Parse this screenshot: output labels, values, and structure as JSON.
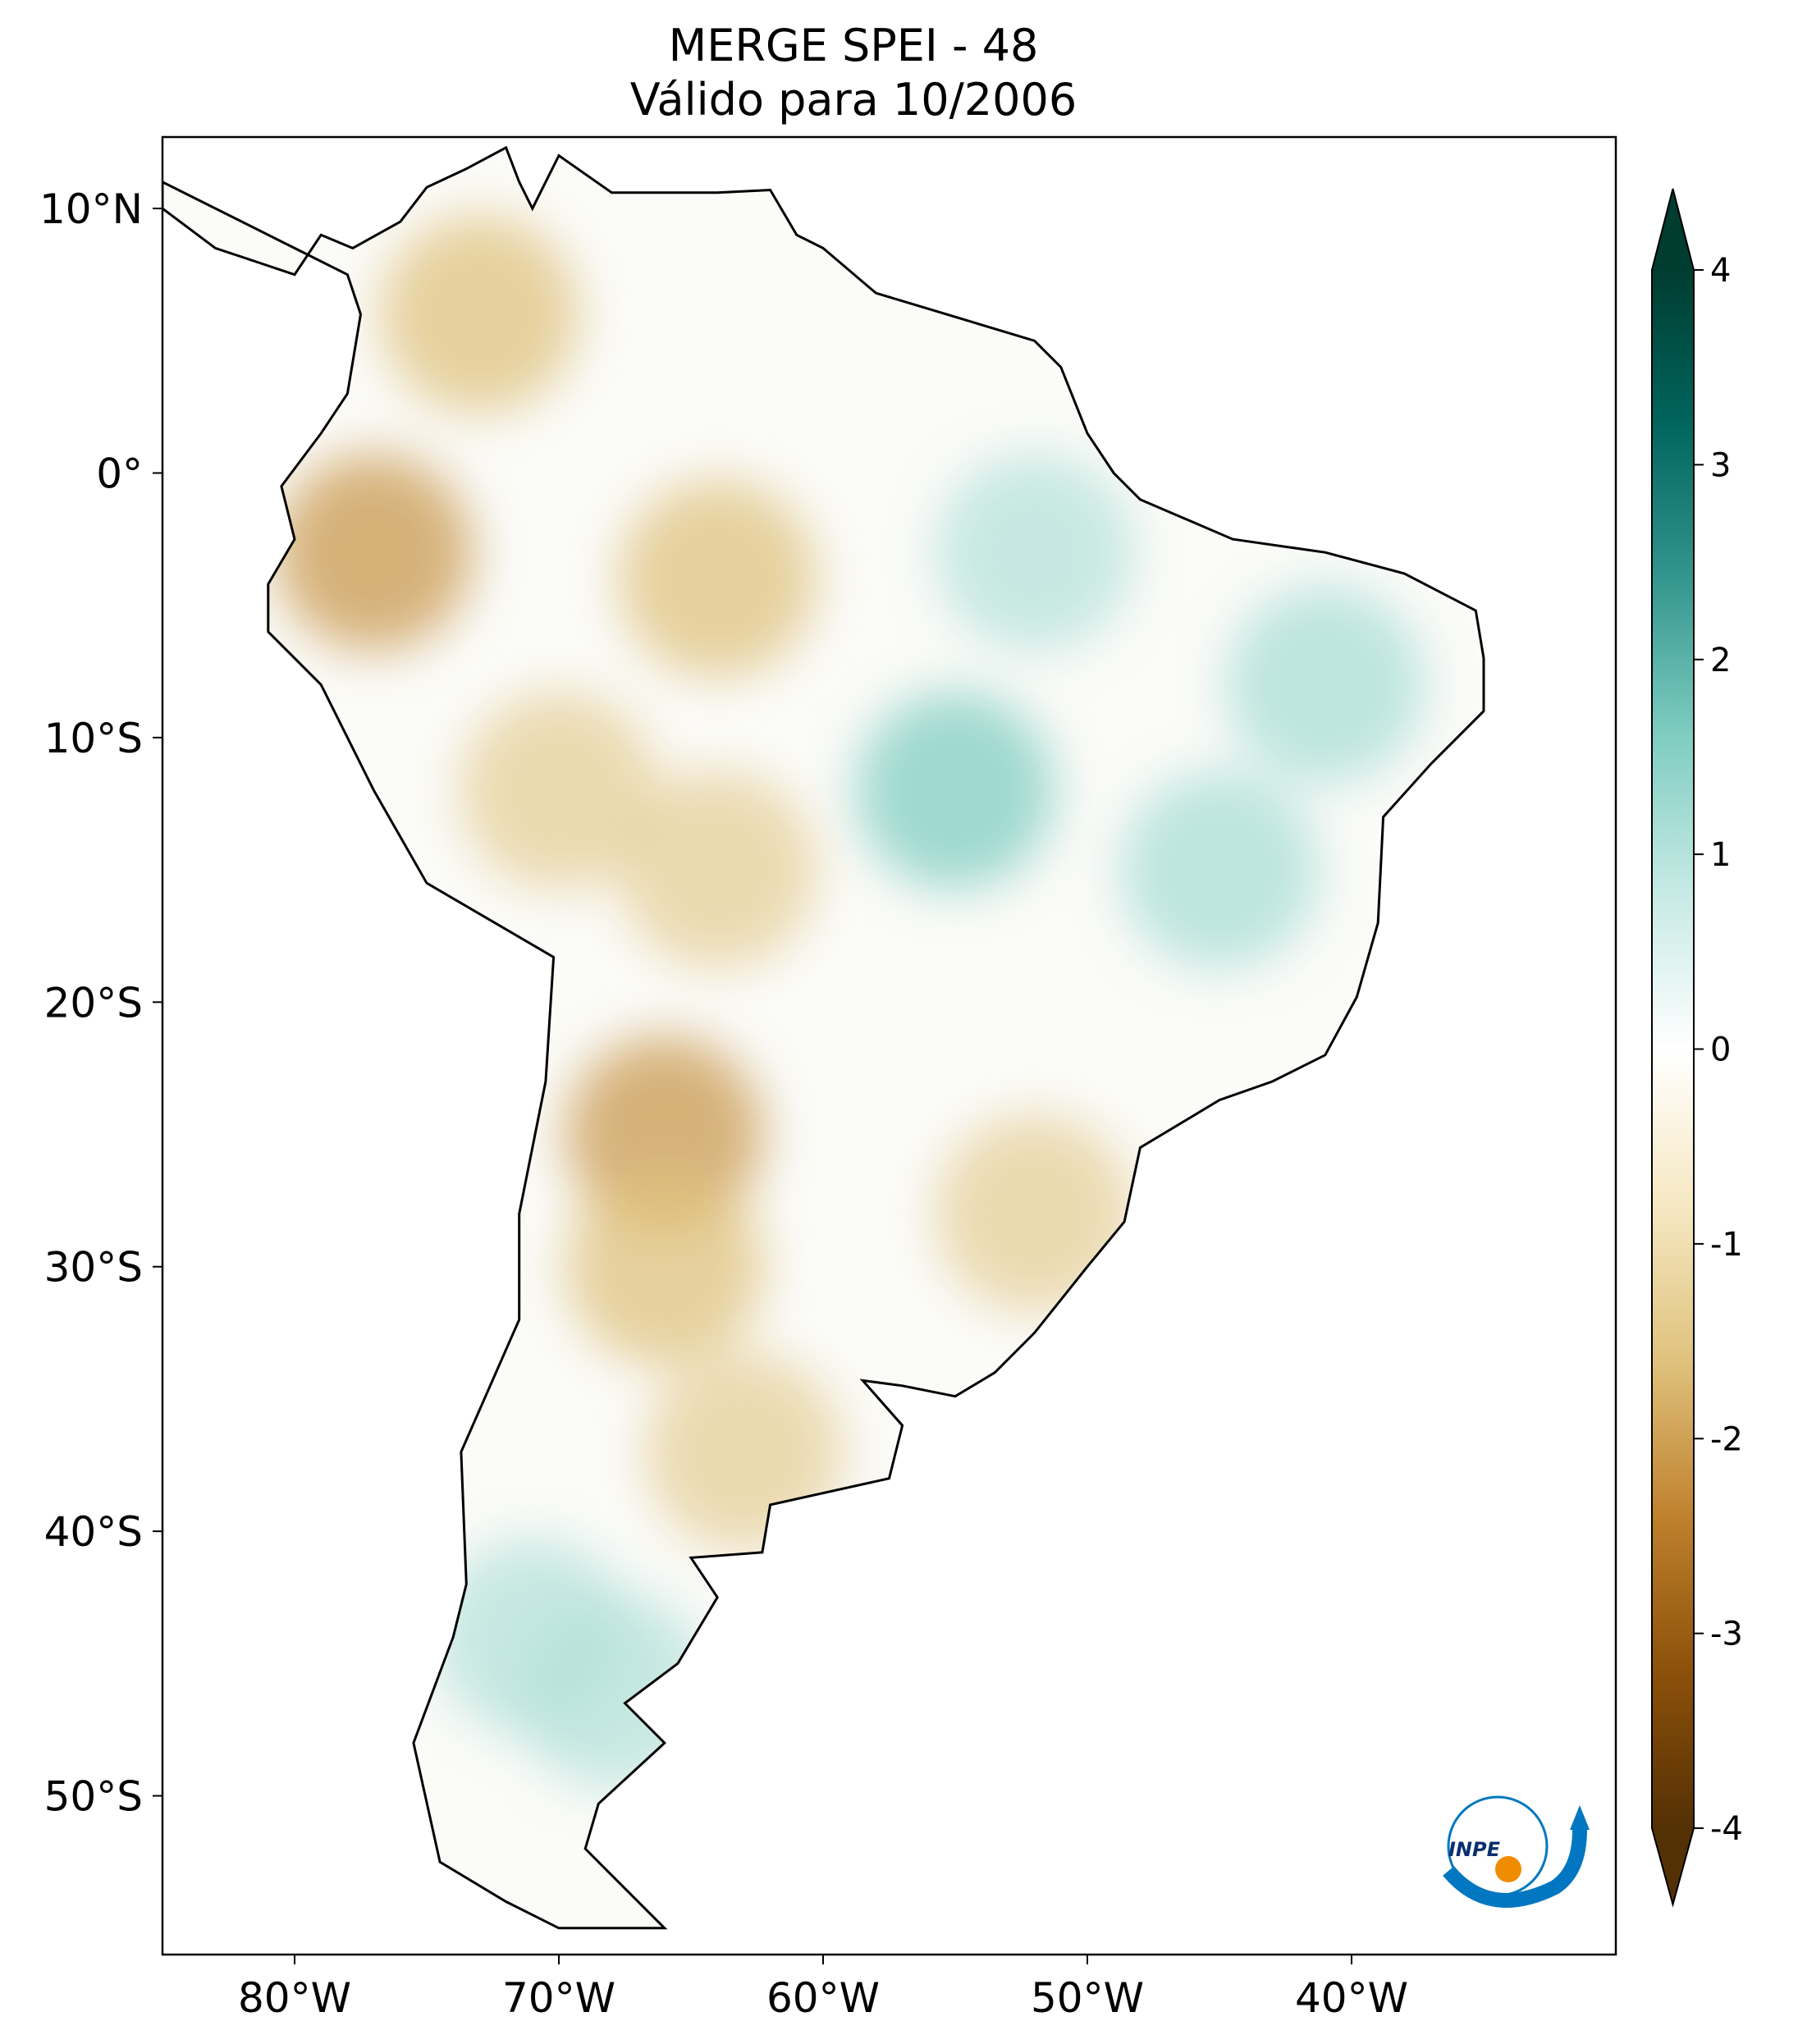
{
  "title": {
    "line1": "MERGE   SPEI - 48",
    "line2": "Válido para 10/2006"
  },
  "map": {
    "lon_range": [
      -85,
      -30
    ],
    "lat_range": [
      -56,
      12.7
    ],
    "lon_ticks": [
      {
        "value": -80,
        "label": "80°W"
      },
      {
        "value": -70,
        "label": "70°W"
      },
      {
        "value": -60,
        "label": "60°W"
      },
      {
        "value": -50,
        "label": "50°W"
      },
      {
        "value": -40,
        "label": "40°W"
      }
    ],
    "lat_ticks": [
      {
        "value": 10,
        "label": "10°N"
      },
      {
        "value": 0,
        "label": "0°"
      },
      {
        "value": -10,
        "label": "10°S"
      },
      {
        "value": -20,
        "label": "20°S"
      },
      {
        "value": -30,
        "label": "30°S"
      },
      {
        "value": -40,
        "label": "40°S"
      },
      {
        "value": -50,
        "label": "50°S"
      }
    ]
  },
  "colorbar": {
    "colormap": "BrBG",
    "range": [
      -4,
      4
    ],
    "extend": "both",
    "ticks": [
      {
        "value": 4,
        "label": "4"
      },
      {
        "value": 3,
        "label": "3"
      },
      {
        "value": 2,
        "label": "2"
      },
      {
        "value": 1,
        "label": "1"
      },
      {
        "value": 0,
        "label": "0"
      },
      {
        "value": -1,
        "label": "-1"
      },
      {
        "value": -2,
        "label": "-2"
      },
      {
        "value": -3,
        "label": "-3"
      },
      {
        "value": -4,
        "label": "-4"
      }
    ],
    "colors": [
      "#543005",
      "#8c510a",
      "#bf812d",
      "#dfc27d",
      "#f6e8c3",
      "#ffffff",
      "#c7eae5",
      "#80cdc1",
      "#35978f",
      "#01665e",
      "#003c30"
    ]
  },
  "logo": {
    "text": "INPE"
  }
}
